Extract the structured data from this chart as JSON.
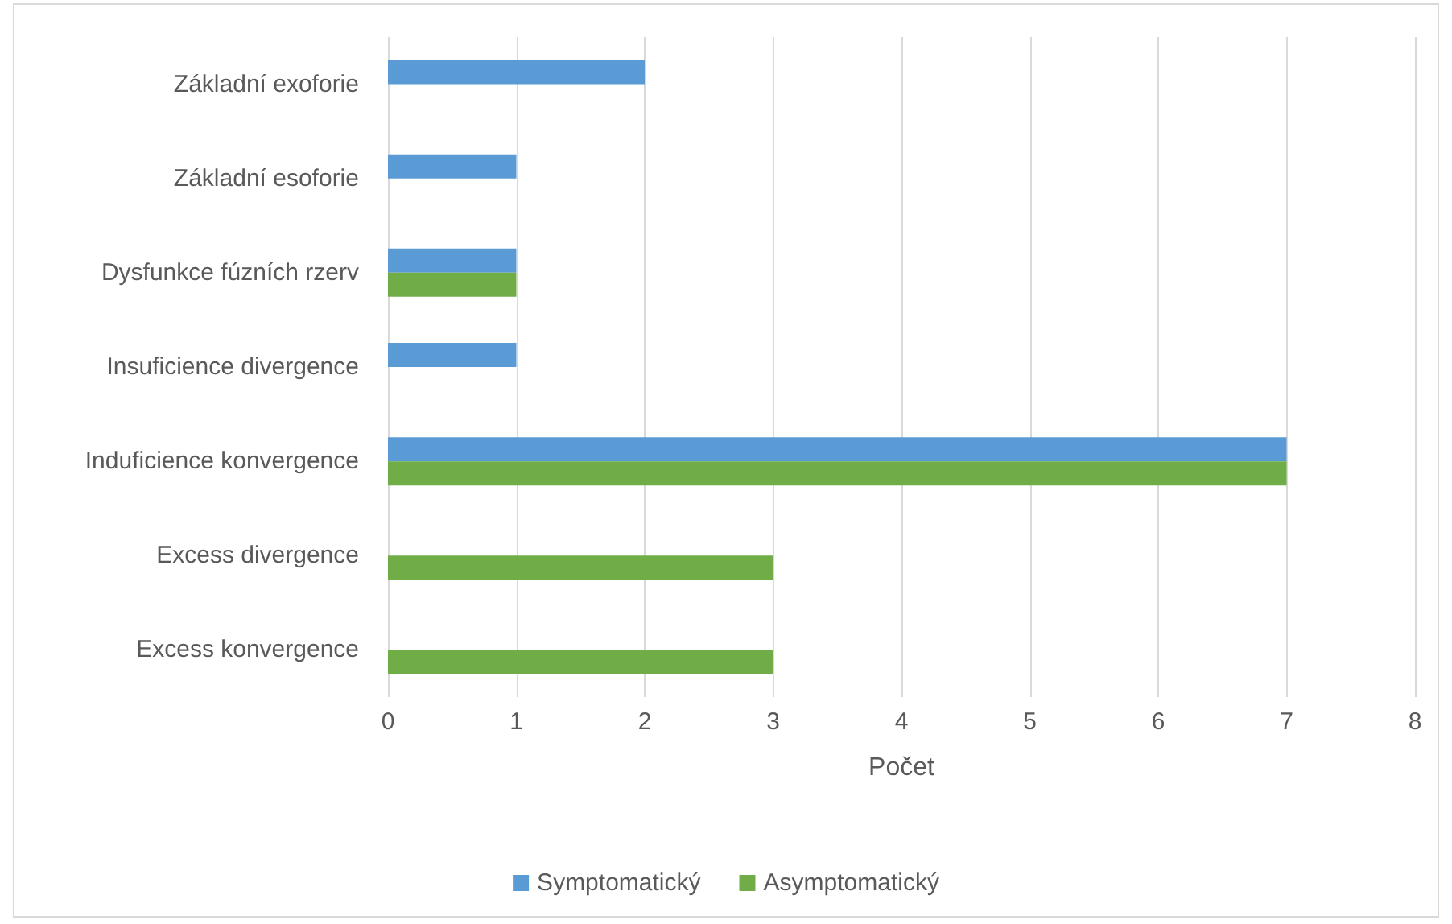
{
  "chart_data": {
    "type": "bar",
    "orientation": "horizontal",
    "xlabel": "Počet",
    "categories": [
      "Základní exoforie",
      "Základní esoforie",
      "Dysfunkce fúzních rzerv",
      "Insuficience divergence",
      "Induficience konvergence",
      "Excess divergence",
      "Excess konvergence"
    ],
    "series": [
      {
        "name": "Symptomatický",
        "color": "#5b9bd5",
        "values": [
          2,
          1,
          1,
          1,
          7,
          null,
          null
        ]
      },
      {
        "name": "Asymptomatický",
        "color": "#70ad47",
        "values": [
          null,
          null,
          1,
          null,
          7,
          3,
          3
        ]
      }
    ],
    "xlim": [
      0,
      8
    ],
    "xticks": [
      0,
      1,
      2,
      3,
      4,
      5,
      6,
      7,
      8
    ],
    "grid": "x",
    "legend": "bottom"
  }
}
